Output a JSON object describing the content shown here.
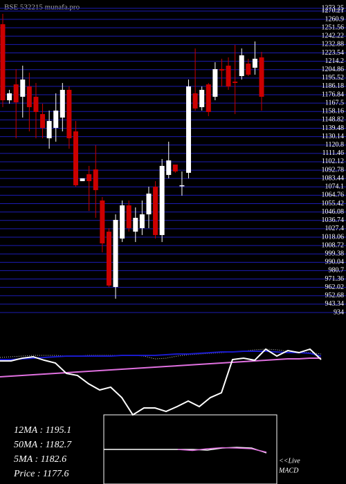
{
  "chart_data": [
    {
      "type": "candlestick",
      "title": "BSE 532215 munafa.pro",
      "ylim": [
        934,
        1273.25
      ],
      "yticks": [
        934,
        943.34,
        952.68,
        962.02,
        971.36,
        980.7,
        990.04,
        999.38,
        1008.72,
        1018.06,
        1027.4,
        1036.74,
        1046.08,
        1055.42,
        1064.76,
        1074.1,
        1083.44,
        1092.78,
        1102.12,
        1111.46,
        1120.8,
        1130.14,
        1139.48,
        1148.82,
        1158.16,
        1167.5,
        1176.84,
        1186.18,
        1195.52,
        1204.86,
        1214.2,
        1223.54,
        1232.88,
        1242.22,
        1251.56,
        1260.9,
        1270.21,
        1273.25
      ],
      "grid": true,
      "grid_color": "#1c1cb4",
      "up_color": "#ffffff",
      "down_color": "#cc0000",
      "open": [
        1255.5,
        1170.7,
        1188.4,
        1174.6,
        1186.1,
        1174.6,
        1155.3,
        1128.3,
        1139.9,
        1151.4,
        1182.3,
        1136.0,
        1080.5,
        1088.2,
        1093.6,
        1058.9,
        1024.2,
        962.5,
        1016.5,
        1053.5,
        1024.2,
        1028.1,
        1043.5,
        1074.3,
        1020.4,
        1087.4,
        1099.0,
        1075.9,
        1089.8,
        1178.4,
        1163.0,
        1188.4,
        1174.6,
        1205.4,
        1209.3,
        1191.5,
        1197.7,
        1211.6,
        1207.0,
        1218.5
      ],
      "high": [
        1267.1,
        1182.3,
        1205.4,
        1209.3,
        1201.5,
        1190.0,
        1166.9,
        1159.2,
        1178.4,
        1190.0,
        1186.1,
        1147.6,
        1083.6,
        1097.5,
        1120.6,
        1062.8,
        1028.1,
        1043.5,
        1058.9,
        1058.9,
        1051.2,
        1058.9,
        1074.3,
        1080.5,
        1105.2,
        1124.5,
        1099.0,
        1091.3,
        1193.8,
        1228.5,
        1186.1,
        1190.0,
        1213.1,
        1217.0,
        1218.5,
        1232.4,
        1228.5,
        1217.0,
        1236.3,
        1224.7
      ],
      "low": [
        1163.0,
        1166.9,
        1128.3,
        1151.4,
        1136.0,
        1128.3,
        1128.3,
        1116.7,
        1124.5,
        1136.0,
        1116.7,
        1074.3,
        1080.5,
        1047.3,
        1039.6,
        1001.1,
        962.5,
        949.4,
        1012.6,
        1024.2,
        1012.6,
        1020.4,
        1028.1,
        1016.5,
        1012.6,
        1083.6,
        1089.8,
        1064.3,
        1083.6,
        1159.2,
        1159.2,
        1153.0,
        1170.7,
        1186.1,
        1182.3,
        1155.3,
        1193.8,
        1197.7,
        1199.2,
        1159.2
      ],
      "close": [
        1170.7,
        1178.4,
        1168.4,
        1193.8,
        1163.0,
        1157.6,
        1139.9,
        1147.6,
        1159.2,
        1182.3,
        1128.3,
        1075.9,
        1083.6,
        1080.5,
        1070.5,
        1011.1,
        964.1,
        1037.3,
        1053.5,
        1028.1,
        1039.6,
        1043.5,
        1066.6,
        1020.4,
        1097.5,
        1103.6,
        1091.3,
        1075.9,
        1186.1,
        1161.5,
        1182.3,
        1157.6,
        1205.4,
        1203.9,
        1186.1,
        1190.0,
        1220.8,
        1199.2,
        1217.0,
        1174.6
      ]
    },
    {
      "type": "line",
      "ylim": [
        0,
        100
      ],
      "annotations": [
        "12MA : 1195.1",
        "50MA : 1182.7",
        "5MA : 1182.6",
        "Price   : 1177.6"
      ],
      "series": [
        {
          "color": "#e070e0",
          "values": [
            50,
            50.9,
            51.8,
            52.7,
            53.6,
            54.5,
            55.5,
            56.4,
            57.3,
            58.2,
            59.1,
            60,
            60.9,
            61.8,
            62.7,
            63.6,
            64.5,
            65.5,
            66.4,
            67.3,
            68.2,
            69.1,
            70,
            70.9,
            71.8,
            72.7,
            73.6,
            73.6,
            74.5,
            74.5
          ]
        },
        {
          "color": "#cccccc",
          "dashed": true,
          "values": [
            75.5,
            76.4,
            77.3,
            78.2,
            78.2,
            78.2,
            77.3,
            77.3,
            78.2,
            78.2,
            78.2,
            78.2,
            78.2,
            77.3,
            73.6,
            74.5,
            77.3,
            79.1,
            80,
            80.9,
            81.8,
            82.7,
            83.6,
            85.5,
            86.4,
            85.5,
            83.6,
            82.7,
            81.8,
            80
          ]
        },
        {
          "color": "#1a1acc",
          "values": [
            72.7,
            72.7,
            73.6,
            74.5,
            75.5,
            76.4,
            77.3,
            77.3,
            77.3,
            77.3,
            77.3,
            78.2,
            78.2,
            78.2,
            78.2,
            79.1,
            80,
            80,
            80.9,
            81.8,
            82.7,
            82.7,
            83.6,
            83.6,
            83.6,
            82.7,
            81.8,
            81.8,
            80.9,
            77.3
          ]
        },
        {
          "color": "#ffffff",
          "values": [
            70.9,
            70.9,
            74.5,
            76.4,
            71.8,
            68.2,
            54.5,
            51.8,
            40.9,
            32.7,
            36.4,
            22.7,
            0,
            9.1,
            9.1,
            4.5,
            10.9,
            18.2,
            10.9,
            22.7,
            29.1,
            72.7,
            74.5,
            71.8,
            86.4,
            77.3,
            84.5,
            81.8,
            86.4,
            72.7
          ]
        }
      ]
    },
    {
      "type": "macd",
      "ylim": [
        -10,
        10
      ],
      "annotations": [
        "<<Live",
        "MACD"
      ],
      "series": [
        {
          "color": "#ffffff",
          "values": [
            0,
            0,
            0,
            0,
            0,
            0,
            0,
            -0.2,
            0.4,
            0.6,
            0.4,
            -1
          ]
        },
        {
          "color": "#e070e0",
          "values": [
            null,
            null,
            null,
            null,
            null,
            0,
            -0.3,
            0.2,
            0.5,
            0.4,
            0.2,
            -0.8
          ]
        }
      ]
    }
  ]
}
